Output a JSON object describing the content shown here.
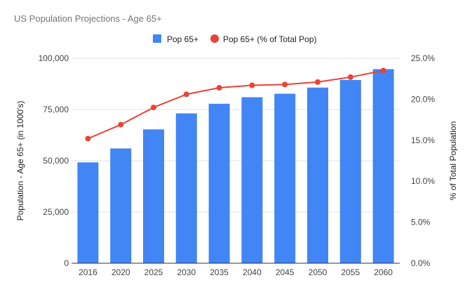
{
  "chart_data": {
    "type": "bar",
    "title": "US Population Projections - Age 65+",
    "categories": [
      "2016",
      "2020",
      "2025",
      "2030",
      "2035",
      "2040",
      "2045",
      "2050",
      "2055",
      "2060"
    ],
    "series": [
      {
        "name": "Pop 65+",
        "type": "bar",
        "axis": "left",
        "color": "#4285f4",
        "values": [
          49200,
          56000,
          65300,
          73100,
          77800,
          81000,
          82700,
          85700,
          89400,
          94700
        ]
      },
      {
        "name": "Pop 65+ (% of Total Pop)",
        "type": "line",
        "axis": "right",
        "color": "#ea4335",
        "values": [
          15.2,
          16.9,
          19.0,
          20.6,
          21.4,
          21.7,
          21.8,
          22.1,
          22.7,
          23.5
        ]
      }
    ],
    "y_left": {
      "label": "Population - Age 65+ (in 1000's)",
      "min": 0,
      "max": 100000,
      "ticks": [
        "0",
        "25,000",
        "50,000",
        "75,000",
        "100,000"
      ]
    },
    "y_right": {
      "label": "% of Total Population",
      "min": 0,
      "max": 25,
      "ticks": [
        "0.0%",
        "5.0%",
        "10.0%",
        "15.0%",
        "20.0%",
        "25.0%"
      ]
    },
    "grid": true,
    "legend_position": "top"
  }
}
